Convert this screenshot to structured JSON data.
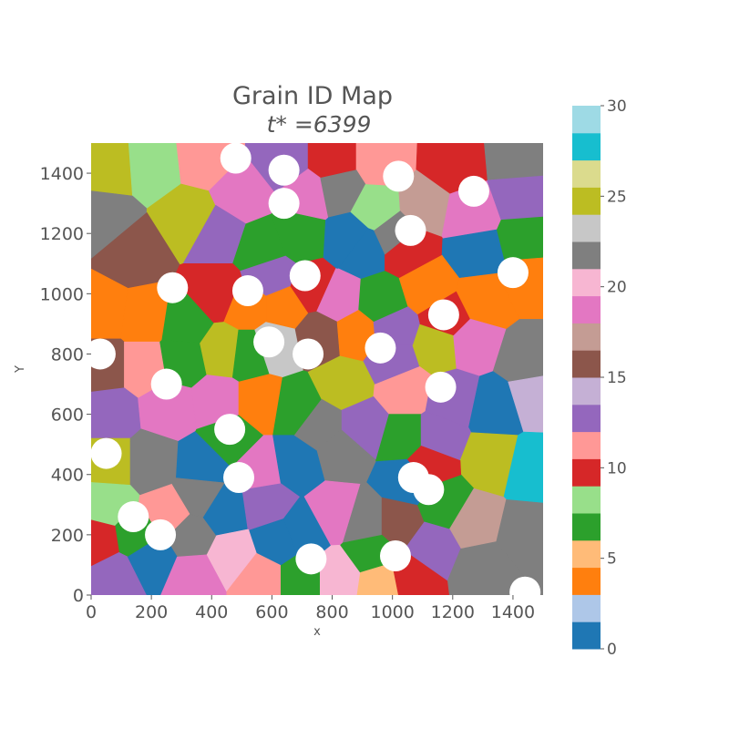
{
  "chart_data": {
    "type": "heatmap",
    "title": "Grain ID Map",
    "subtitle": "t* =6399",
    "xlabel": "x",
    "ylabel": "Y",
    "xlim": [
      0,
      1500
    ],
    "ylim": [
      0,
      1500
    ],
    "xticks": [
      0,
      200,
      400,
      600,
      800,
      1000,
      1200,
      1400
    ],
    "yticks": [
      0,
      200,
      400,
      600,
      800,
      1000,
      1200,
      1400
    ],
    "grid": false,
    "colorbar": {
      "range": [
        0,
        30
      ],
      "ticks": [
        0,
        5,
        10,
        15,
        20,
        25,
        30
      ],
      "colormap": "tab20",
      "colors": [
        "#1f77b4",
        "#aec7e8",
        "#ff7f0e",
        "#ffbb78",
        "#2ca02c",
        "#98df8a",
        "#d62728",
        "#ff9896",
        "#9467bd",
        "#c5b0d5",
        "#8c564b",
        "#c49c94",
        "#e377c2",
        "#f7b6d2",
        "#7f7f7f",
        "#c7c7c7",
        "#bcbd22",
        "#dbdb8d",
        "#17becf",
        "#9edae5"
      ]
    },
    "grains": [
      {
        "x": 60,
        "y": 1420,
        "id": 24
      },
      {
        "x": 200,
        "y": 1430,
        "id": 8
      },
      {
        "x": 380,
        "y": 1450,
        "id": 11
      },
      {
        "x": 640,
        "y": 1440,
        "id": 13
      },
      {
        "x": 800,
        "y": 1440,
        "id": 10
      },
      {
        "x": 960,
        "y": 1440,
        "id": 11
      },
      {
        "x": 1200,
        "y": 1430,
        "id": 10
      },
      {
        "x": 1420,
        "y": 1450,
        "id": 21
      },
      {
        "x": 40,
        "y": 1250,
        "id": 21
      },
      {
        "x": 330,
        "y": 1250,
        "id": 25
      },
      {
        "x": 500,
        "y": 1330,
        "id": 19
      },
      {
        "x": 720,
        "y": 1330,
        "id": 19
      },
      {
        "x": 820,
        "y": 1350,
        "id": 22
      },
      {
        "x": 950,
        "y": 1280,
        "id": 8
      },
      {
        "x": 1100,
        "y": 1290,
        "id": 17
      },
      {
        "x": 1260,
        "y": 1260,
        "id": 19
      },
      {
        "x": 1430,
        "y": 1320,
        "id": 12
      },
      {
        "x": 140,
        "y": 1130,
        "id": 16
      },
      {
        "x": 420,
        "y": 1200,
        "id": 12
      },
      {
        "x": 570,
        "y": 1150,
        "id": 6
      },
      {
        "x": 690,
        "y": 1190,
        "id": 7
      },
      {
        "x": 900,
        "y": 1150,
        "id": 0
      },
      {
        "x": 1050,
        "y": 1150,
        "id": 9
      },
      {
        "x": 1280,
        "y": 1140,
        "id": 0
      },
      {
        "x": 1440,
        "y": 1180,
        "id": 6
      },
      {
        "x": 40,
        "y": 940,
        "id": 4
      },
      {
        "x": 180,
        "y": 920,
        "id": 3
      },
      {
        "x": 310,
        "y": 900,
        "id": 6
      },
      {
        "x": 420,
        "y": 1000,
        "id": 10
      },
      {
        "x": 520,
        "y": 960,
        "id": 3
      },
      {
        "x": 640,
        "y": 960,
        "id": 4
      },
      {
        "x": 730,
        "y": 1020,
        "id": 10
      },
      {
        "x": 820,
        "y": 980,
        "id": 18
      },
      {
        "x": 960,
        "y": 970,
        "id": 6
      },
      {
        "x": 1120,
        "y": 1020,
        "id": 4
      },
      {
        "x": 1300,
        "y": 980,
        "id": 4
      },
      {
        "x": 1450,
        "y": 1050,
        "id": 3
      },
      {
        "x": 40,
        "y": 760,
        "id": 15
      },
      {
        "x": 180,
        "y": 760,
        "id": 11
      },
      {
        "x": 300,
        "y": 780,
        "id": 6
      },
      {
        "x": 440,
        "y": 810,
        "id": 25
      },
      {
        "x": 520,
        "y": 800,
        "id": 6
      },
      {
        "x": 610,
        "y": 830,
        "id": 23
      },
      {
        "x": 760,
        "y": 860,
        "id": 16
      },
      {
        "x": 880,
        "y": 870,
        "id": 4
      },
      {
        "x": 1000,
        "y": 780,
        "id": 12
      },
      {
        "x": 1150,
        "y": 830,
        "id": 25
      },
      {
        "x": 1260,
        "y": 840,
        "id": 18
      },
      {
        "x": 1450,
        "y": 780,
        "id": 21
      },
      {
        "x": 60,
        "y": 600,
        "id": 12
      },
      {
        "x": 260,
        "y": 620,
        "id": 19
      },
      {
        "x": 420,
        "y": 640,
        "id": 19
      },
      {
        "x": 560,
        "y": 640,
        "id": 3
      },
      {
        "x": 680,
        "y": 620,
        "id": 6
      },
      {
        "x": 840,
        "y": 700,
        "id": 25
      },
      {
        "x": 1040,
        "y": 680,
        "id": 11
      },
      {
        "x": 1200,
        "y": 650,
        "id": 13
      },
      {
        "x": 1340,
        "y": 620,
        "id": 0
      },
      {
        "x": 1470,
        "y": 660,
        "id": 14
      },
      {
        "x": 60,
        "y": 440,
        "id": 25
      },
      {
        "x": 200,
        "y": 440,
        "id": 21
      },
      {
        "x": 370,
        "y": 430,
        "id": 0
      },
      {
        "x": 560,
        "y": 420,
        "id": 19
      },
      {
        "x": 680,
        "y": 440,
        "id": 0
      },
      {
        "x": 830,
        "y": 480,
        "id": 21
      },
      {
        "x": 1040,
        "y": 520,
        "id": 6
      },
      {
        "x": 1150,
        "y": 520,
        "id": 12
      },
      {
        "x": 1330,
        "y": 450,
        "id": 25
      },
      {
        "x": 1460,
        "y": 420,
        "id": 27
      },
      {
        "x": 50,
        "y": 300,
        "id": 8
      },
      {
        "x": 150,
        "y": 200,
        "id": 6
      },
      {
        "x": 260,
        "y": 270,
        "id": 11
      },
      {
        "x": 330,
        "y": 200,
        "id": 22
      },
      {
        "x": 440,
        "y": 280,
        "id": 0
      },
      {
        "x": 580,
        "y": 300,
        "id": 12
      },
      {
        "x": 700,
        "y": 210,
        "id": 0
      },
      {
        "x": 810,
        "y": 270,
        "id": 19
      },
      {
        "x": 910,
        "y": 240,
        "id": 21
      },
      {
        "x": 1020,
        "y": 240,
        "id": 16
      },
      {
        "x": 1170,
        "y": 300,
        "id": 6
      },
      {
        "x": 1270,
        "y": 240,
        "id": 17
      },
      {
        "x": 1440,
        "y": 200,
        "id": 22
      },
      {
        "x": 20,
        "y": 180,
        "id": 10
      },
      {
        "x": 80,
        "y": 60,
        "id": 13
      },
      {
        "x": 200,
        "y": 120,
        "id": 1
      },
      {
        "x": 340,
        "y": 60,
        "id": 18
      },
      {
        "x": 470,
        "y": 130,
        "id": 20
      },
      {
        "x": 560,
        "y": 60,
        "id": 11
      },
      {
        "x": 700,
        "y": 60,
        "id": 6
      },
      {
        "x": 820,
        "y": 60,
        "id": 20
      },
      {
        "x": 930,
        "y": 140,
        "id": 6
      },
      {
        "x": 960,
        "y": 40,
        "id": 5
      },
      {
        "x": 1060,
        "y": 60,
        "id": 10
      },
      {
        "x": 1130,
        "y": 160,
        "id": 12
      },
      {
        "x": 1300,
        "y": 90,
        "id": 21
      },
      {
        "x": 860,
        "y": 1180,
        "id": 0
      },
      {
        "x": 1010,
        "y": 1200,
        "id": 22
      },
      {
        "x": 600,
        "y": 1060,
        "id": 12
      },
      {
        "x": 1180,
        "y": 920,
        "id": 10
      },
      {
        "x": 900,
        "y": 560,
        "id": 12
      },
      {
        "x": 460,
        "y": 520,
        "id": 6
      },
      {
        "x": 1050,
        "y": 380,
        "id": 1
      },
      {
        "x": 1120,
        "y": 440,
        "id": 10
      },
      {
        "x": 620,
        "y": 180,
        "id": 1
      },
      {
        "x": 1000,
        "y": 880,
        "id": 12
      },
      {
        "x": 760,
        "y": 560,
        "id": 21
      },
      {
        "x": 360,
        "y": 330,
        "id": 21
      }
    ],
    "voids": [
      {
        "x": 480,
        "y": 1450
      },
      {
        "x": 640,
        "y": 1410
      },
      {
        "x": 1020,
        "y": 1390
      },
      {
        "x": 1270,
        "y": 1340
      },
      {
        "x": 640,
        "y": 1300
      },
      {
        "x": 1060,
        "y": 1210
      },
      {
        "x": 270,
        "y": 1020
      },
      {
        "x": 520,
        "y": 1010
      },
      {
        "x": 710,
        "y": 1060
      },
      {
        "x": 1400,
        "y": 1070
      },
      {
        "x": 1170,
        "y": 930
      },
      {
        "x": 30,
        "y": 800
      },
      {
        "x": 590,
        "y": 840
      },
      {
        "x": 720,
        "y": 800
      },
      {
        "x": 960,
        "y": 820
      },
      {
        "x": 250,
        "y": 700
      },
      {
        "x": 1160,
        "y": 690
      },
      {
        "x": 460,
        "y": 550
      },
      {
        "x": 50,
        "y": 470
      },
      {
        "x": 490,
        "y": 390
      },
      {
        "x": 1070,
        "y": 390
      },
      {
        "x": 1120,
        "y": 350
      },
      {
        "x": 140,
        "y": 260
      },
      {
        "x": 230,
        "y": 200
      },
      {
        "x": 730,
        "y": 120
      },
      {
        "x": 1010,
        "y": 130
      },
      {
        "x": 1440,
        "y": 10
      }
    ]
  }
}
